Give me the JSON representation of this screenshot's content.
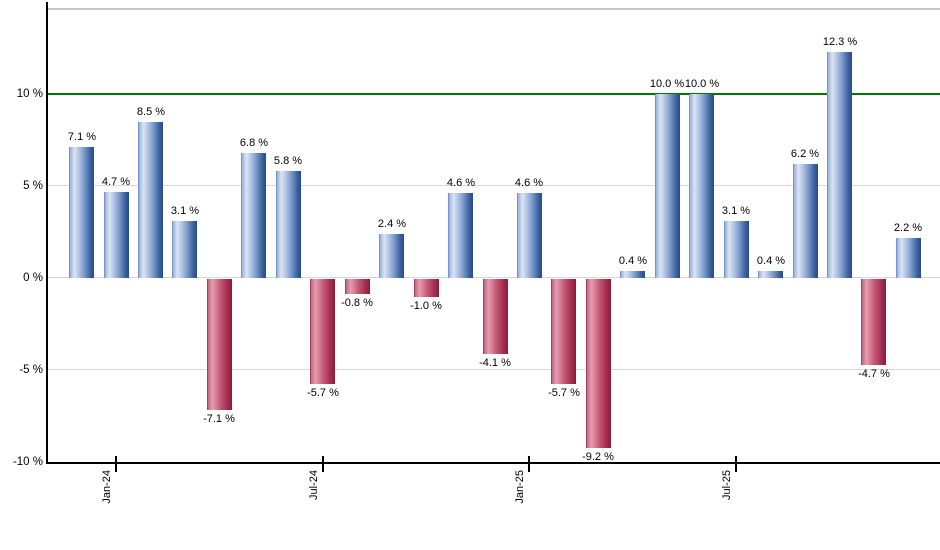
{
  "chart_data": {
    "type": "bar",
    "description": "Monthly percentage returns bar chart, blue bars for positive months and red bars for negative months",
    "values": [
      7.1,
      4.7,
      8.5,
      3.1,
      -7.1,
      6.8,
      5.8,
      -5.7,
      -0.8,
      2.4,
      -1.0,
      4.6,
      -4.1,
      4.6,
      -5.7,
      -9.2,
      0.4,
      10.0,
      10.0,
      3.1,
      0.4,
      6.2,
      12.3,
      -4.7,
      2.2
    ],
    "bar_labels": [
      "7.1 %",
      "4.7 %",
      "8.5 %",
      "3.1 %",
      "-7.1 %",
      "6.8 %",
      "5.8 %",
      "-5.7 %",
      "-0.8 %",
      "2.4 %",
      "-1.0 %",
      "4.6 %",
      "-4.1 %",
      "4.6 %",
      "-5.7 %",
      "-9.2 %",
      "0.4 %",
      "10.0 %",
      "10.0 %",
      "3.1 %",
      "0.4 %",
      "6.2 %",
      "12.3 %",
      "-4.7 %",
      "2.2 %"
    ],
    "x_ticks": [
      {
        "label": "Jan-24",
        "bar_index": 1
      },
      {
        "label": "Jul-24",
        "bar_index": 7
      },
      {
        "label": "Jan-25",
        "bar_index": 13
      },
      {
        "label": "Jul-25",
        "bar_index": 19
      }
    ],
    "y_ticks": [
      {
        "label": "10 %",
        "value": 10
      },
      {
        "label": "5 %",
        "value": 5
      },
      {
        "label": "0 %",
        "value": 0
      },
      {
        "label": "-5 %",
        "value": -5
      },
      {
        "label": "-10 %",
        "value": -10
      }
    ],
    "ylim": [
      -10,
      14.7
    ],
    "grid": true,
    "legend": false,
    "reference_line": {
      "value": 10,
      "color": "#007500"
    },
    "colors": {
      "positive_gradient": [
        "#5d7db4 0%",
        "#9db4da 5%",
        "#dce5f4 22%",
        "#8ba6d3 55%",
        "#3b629f 85%",
        "#284a85 100%"
      ],
      "negative_gradient": [
        "#942647 0%",
        "#c06a85 5%",
        "#e69cb0 22%",
        "#c25672 55%",
        "#a12a4c 85%",
        "#871d3a 100%"
      ],
      "gridline": "#d8d8d8",
      "axis": "#000000",
      "plot_top_border": "#c9c9c9",
      "label_text": "#000000"
    }
  }
}
